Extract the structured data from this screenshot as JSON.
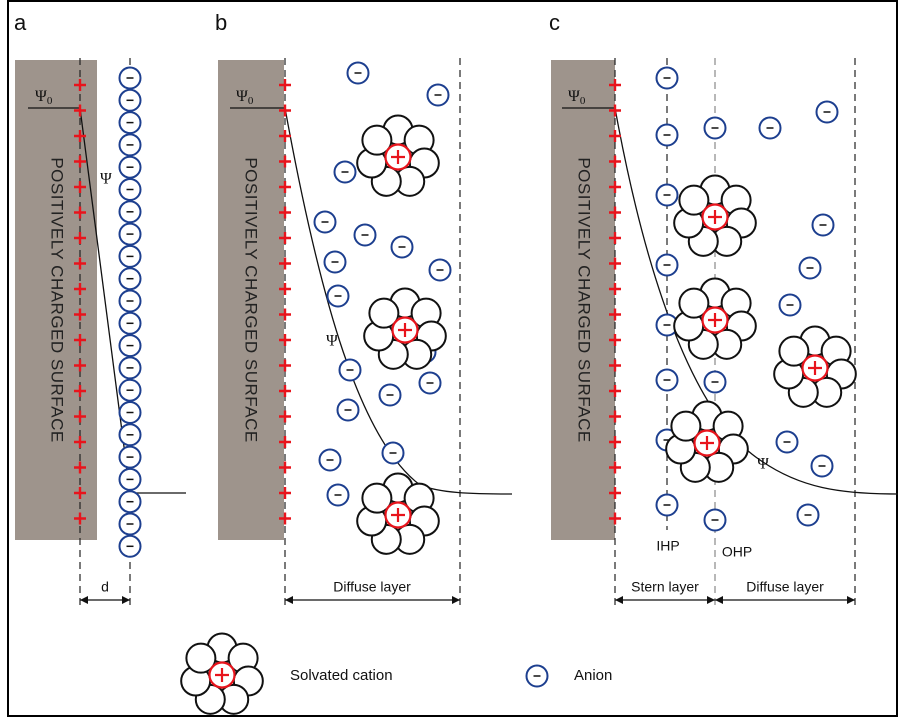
{
  "panels": [
    {
      "label": "a",
      "surface_label": "POSITIVELY CHARGED SURFACE",
      "psi0": {
        "symbol": "Ψ",
        "subscript": "0"
      },
      "psi": "Ψ",
      "layer_labels": [
        "d"
      ]
    },
    {
      "label": "b",
      "surface_label": "POSITIVELY CHARGED SURFACE",
      "psi0": {
        "symbol": "Ψ",
        "subscript": "0"
      },
      "psi": "Ψ",
      "layer_labels": [
        "Diffuse layer"
      ]
    },
    {
      "label": "c",
      "surface_label": "POSITIVELY CHARGED SURFACE",
      "psi0": {
        "symbol": "Ψ",
        "subscript": "0"
      },
      "psi": "Ψ",
      "layer_labels": [
        "Stern layer",
        "Diffuse layer"
      ],
      "planes": [
        "IHP",
        "OHP"
      ]
    }
  ],
  "legend": {
    "cation": "Solvated cation",
    "anion": "Anion"
  }
}
